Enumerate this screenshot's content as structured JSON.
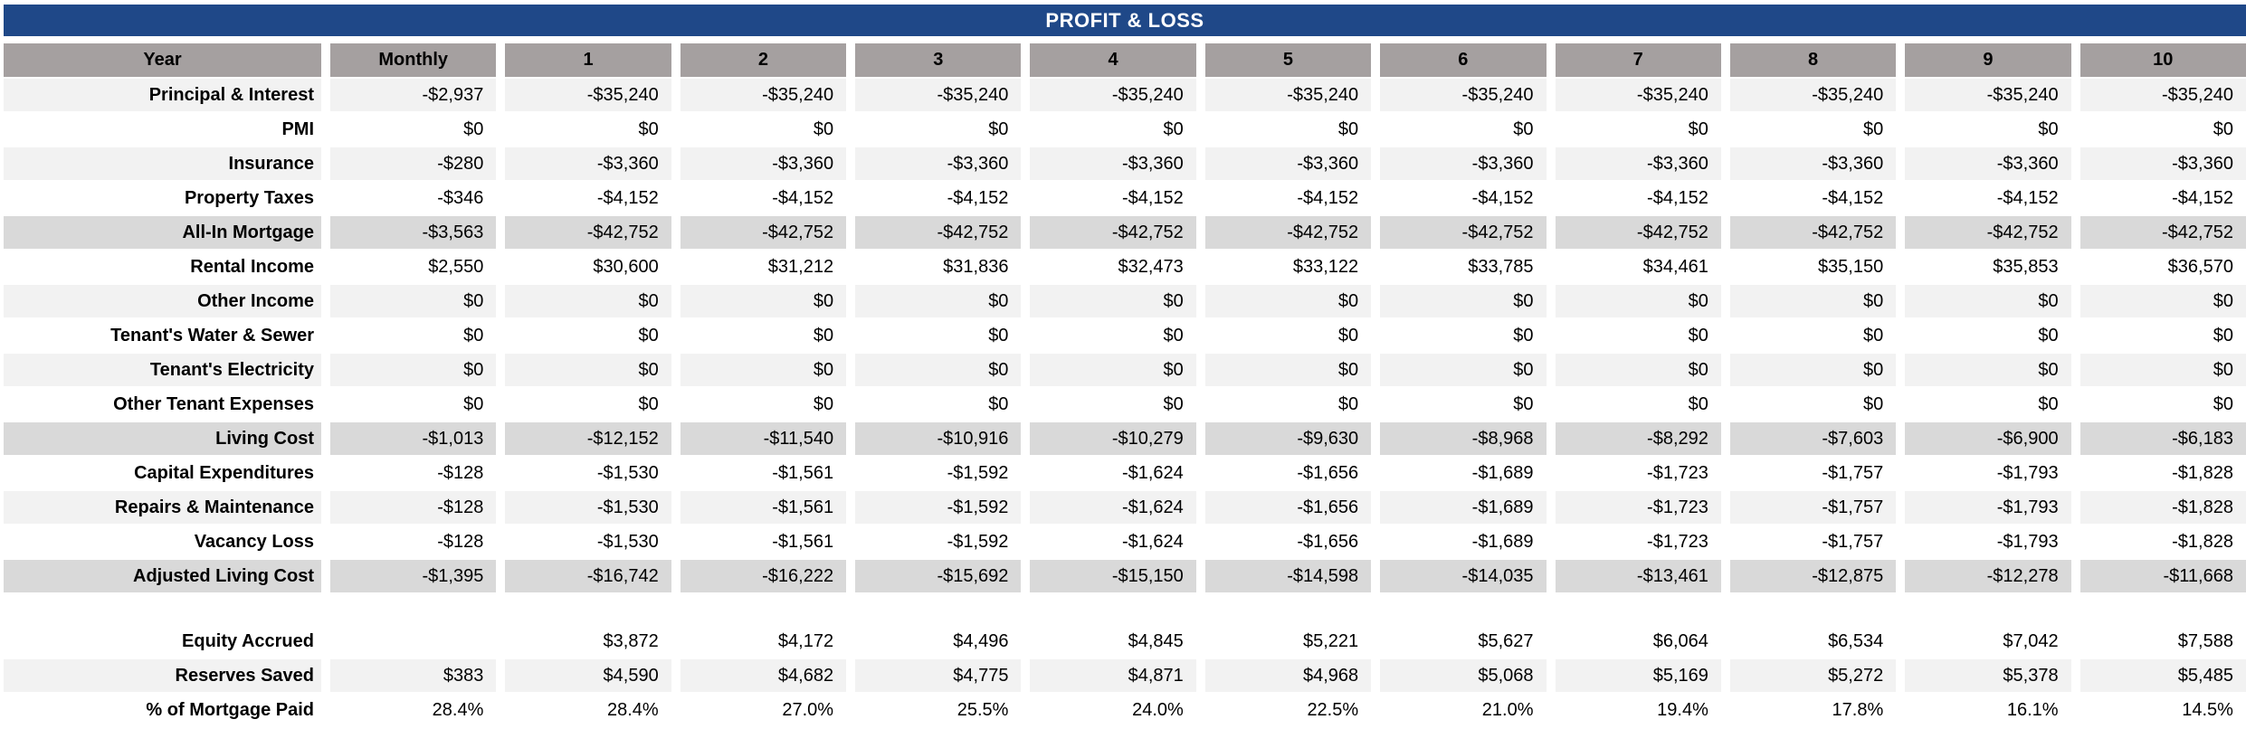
{
  "title": "PROFIT & LOSS",
  "colors": {
    "banner": "#1F4888",
    "header_bg": "#A5A0A0",
    "stripe": "#F2F2F2",
    "summary": "#D9D9D9",
    "text": "#000000",
    "banner_text": "#FFFFFF"
  },
  "table": {
    "label_header": "Year",
    "columns": [
      "Monthly",
      "1",
      "2",
      "3",
      "4",
      "5",
      "6",
      "7",
      "8",
      "9",
      "10"
    ],
    "rows": [
      {
        "label": "Principal & Interest",
        "style": "stripe",
        "values": [
          "-$2,937",
          "-$35,240",
          "-$35,240",
          "-$35,240",
          "-$35,240",
          "-$35,240",
          "-$35,240",
          "-$35,240",
          "-$35,240",
          "-$35,240",
          "-$35,240"
        ]
      },
      {
        "label": "PMI",
        "style": "plain",
        "values": [
          "$0",
          "$0",
          "$0",
          "$0",
          "$0",
          "$0",
          "$0",
          "$0",
          "$0",
          "$0",
          "$0"
        ]
      },
      {
        "label": "Insurance",
        "style": "stripe",
        "values": [
          "-$280",
          "-$3,360",
          "-$3,360",
          "-$3,360",
          "-$3,360",
          "-$3,360",
          "-$3,360",
          "-$3,360",
          "-$3,360",
          "-$3,360",
          "-$3,360"
        ]
      },
      {
        "label": "Property Taxes",
        "style": "plain",
        "values": [
          "-$346",
          "-$4,152",
          "-$4,152",
          "-$4,152",
          "-$4,152",
          "-$4,152",
          "-$4,152",
          "-$4,152",
          "-$4,152",
          "-$4,152",
          "-$4,152"
        ]
      },
      {
        "label": "All-In Mortgage",
        "style": "summary",
        "values": [
          "-$3,563",
          "-$42,752",
          "-$42,752",
          "-$42,752",
          "-$42,752",
          "-$42,752",
          "-$42,752",
          "-$42,752",
          "-$42,752",
          "-$42,752",
          "-$42,752"
        ]
      },
      {
        "label": "Rental Income",
        "style": "plain",
        "values": [
          "$2,550",
          "$30,600",
          "$31,212",
          "$31,836",
          "$32,473",
          "$33,122",
          "$33,785",
          "$34,461",
          "$35,150",
          "$35,853",
          "$36,570"
        ]
      },
      {
        "label": "Other Income",
        "style": "stripe",
        "values": [
          "$0",
          "$0",
          "$0",
          "$0",
          "$0",
          "$0",
          "$0",
          "$0",
          "$0",
          "$0",
          "$0"
        ]
      },
      {
        "label": "Tenant's Water & Sewer",
        "style": "plain",
        "values": [
          "$0",
          "$0",
          "$0",
          "$0",
          "$0",
          "$0",
          "$0",
          "$0",
          "$0",
          "$0",
          "$0"
        ]
      },
      {
        "label": "Tenant's Electricity",
        "style": "stripe",
        "values": [
          "$0",
          "$0",
          "$0",
          "$0",
          "$0",
          "$0",
          "$0",
          "$0",
          "$0",
          "$0",
          "$0"
        ]
      },
      {
        "label": "Other Tenant Expenses",
        "style": "plain",
        "values": [
          "$0",
          "$0",
          "$0",
          "$0",
          "$0",
          "$0",
          "$0",
          "$0",
          "$0",
          "$0",
          "$0"
        ]
      },
      {
        "label": "Living Cost",
        "style": "summary",
        "values": [
          "-$1,013",
          "-$12,152",
          "-$11,540",
          "-$10,916",
          "-$10,279",
          "-$9,630",
          "-$8,968",
          "-$8,292",
          "-$7,603",
          "-$6,900",
          "-$6,183"
        ]
      },
      {
        "label": "Capital Expenditures",
        "style": "plain",
        "values": [
          "-$128",
          "-$1,530",
          "-$1,561",
          "-$1,592",
          "-$1,624",
          "-$1,656",
          "-$1,689",
          "-$1,723",
          "-$1,757",
          "-$1,793",
          "-$1,828"
        ]
      },
      {
        "label": "Repairs & Maintenance",
        "style": "stripe",
        "values": [
          "-$128",
          "-$1,530",
          "-$1,561",
          "-$1,592",
          "-$1,624",
          "-$1,656",
          "-$1,689",
          "-$1,723",
          "-$1,757",
          "-$1,793",
          "-$1,828"
        ]
      },
      {
        "label": "Vacancy Loss",
        "style": "plain",
        "values": [
          "-$128",
          "-$1,530",
          "-$1,561",
          "-$1,592",
          "-$1,624",
          "-$1,656",
          "-$1,689",
          "-$1,723",
          "-$1,757",
          "-$1,793",
          "-$1,828"
        ]
      },
      {
        "label": "Adjusted Living Cost",
        "style": "summary",
        "values": [
          "-$1,395",
          "-$16,742",
          "-$16,222",
          "-$15,692",
          "-$15,150",
          "-$14,598",
          "-$14,035",
          "-$13,461",
          "-$12,875",
          "-$12,278",
          "-$11,668"
        ]
      }
    ],
    "bottom_rows": [
      {
        "label": "Equity Accrued",
        "style": "plain",
        "values": [
          "",
          "$3,872",
          "$4,172",
          "$4,496",
          "$4,845",
          "$5,221",
          "$5,627",
          "$6,064",
          "$6,534",
          "$7,042",
          "$7,588"
        ]
      },
      {
        "label": "Reserves Saved",
        "style": "stripe",
        "values": [
          "$383",
          "$4,590",
          "$4,682",
          "$4,775",
          "$4,871",
          "$4,968",
          "$5,068",
          "$5,169",
          "$5,272",
          "$5,378",
          "$5,485"
        ]
      },
      {
        "label": "% of Mortgage Paid",
        "style": "plain",
        "values": [
          "28.4%",
          "28.4%",
          "27.0%",
          "25.5%",
          "24.0%",
          "22.5%",
          "21.0%",
          "19.4%",
          "17.8%",
          "16.1%",
          "14.5%"
        ]
      }
    ]
  }
}
